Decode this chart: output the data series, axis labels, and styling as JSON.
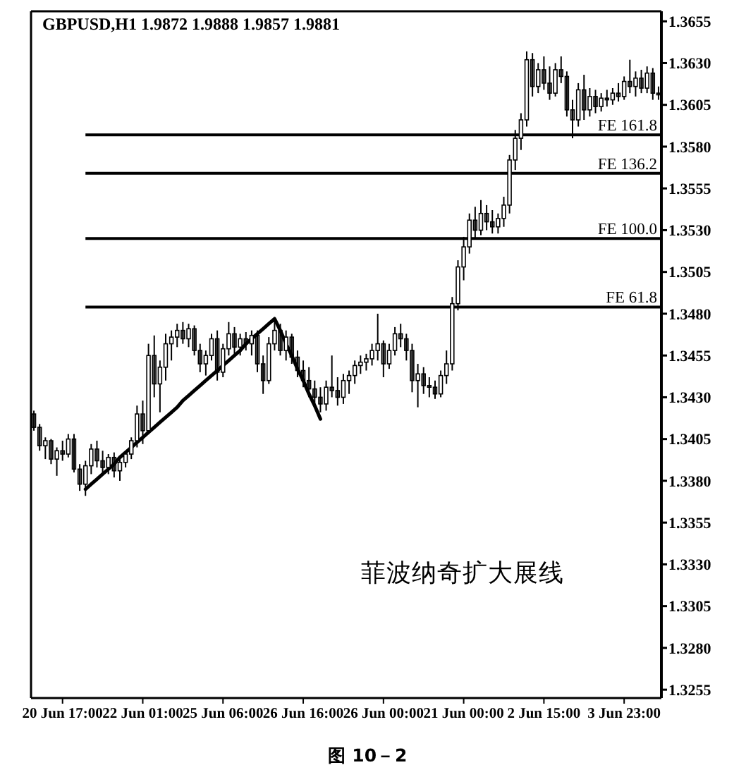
{
  "chart_data": {
    "type": "candlestick",
    "title": "GBPUSD,H1 1.9872 1.9888 1.9857 1.9881",
    "categories": [
      null,
      null,
      null,
      null,
      null,
      "20 Jun 17:00",
      null,
      null,
      null,
      null,
      null,
      null,
      null,
      null,
      null,
      null,
      null,
      null,
      null,
      "22 Jun 01:00",
      null,
      null,
      null,
      null,
      null,
      null,
      null,
      null,
      null,
      null,
      null,
      null,
      null,
      "25 Jun 06:00",
      null,
      null,
      null,
      null,
      null,
      null,
      null,
      null,
      null,
      null,
      null,
      null,
      null,
      "26 Jun 16:00",
      null,
      null,
      null,
      null,
      null,
      null,
      null,
      null,
      null,
      null,
      null,
      null,
      null,
      "26 Jun 00:00",
      null,
      null,
      null,
      null,
      null,
      null,
      null,
      null,
      null,
      null,
      null,
      null,
      null,
      "21 Jun 00:00",
      null,
      null,
      null,
      null,
      null,
      null,
      null,
      null,
      null,
      null,
      null,
      null,
      null,
      "2 Jun 15:00",
      null,
      null,
      null,
      null,
      null,
      null,
      null,
      null,
      null,
      null,
      null,
      null,
      null,
      "3 Jun 23:00",
      null,
      null,
      null,
      null,
      null,
      null
    ],
    "color": "#000000",
    "ohlc": [
      [
        1.342,
        1.3422,
        1.341,
        1.3412
      ],
      [
        1.3412,
        1.3414,
        1.3398,
        1.3401
      ],
      [
        1.3401,
        1.3406,
        1.3393,
        1.3404
      ],
      [
        1.3404,
        1.3405,
        1.339,
        1.3393
      ],
      [
        1.3393,
        1.34,
        1.3383,
        1.3398
      ],
      [
        1.3398,
        1.3404,
        1.3392,
        1.3396
      ],
      [
        1.3396,
        1.3408,
        1.3394,
        1.3405
      ],
      [
        1.3405,
        1.3408,
        1.3385,
        1.3387
      ],
      [
        1.3387,
        1.339,
        1.3374,
        1.3378
      ],
      [
        1.3378,
        1.3392,
        1.3371,
        1.3389
      ],
      [
        1.3389,
        1.3402,
        1.3384,
        1.3399
      ],
      [
        1.3399,
        1.3404,
        1.3388,
        1.3392
      ],
      [
        1.3392,
        1.3398,
        1.3385,
        1.3388
      ],
      [
        1.3388,
        1.3396,
        1.3384,
        1.3394
      ],
      [
        1.3394,
        1.3397,
        1.3382,
        1.3386
      ],
      [
        1.3386,
        1.3393,
        1.338,
        1.3391
      ],
      [
        1.3391,
        1.3398,
        1.3388,
        1.3396
      ],
      [
        1.3396,
        1.3406,
        1.3393,
        1.3404
      ],
      [
        1.3404,
        1.3425,
        1.34,
        1.342
      ],
      [
        1.342,
        1.3428,
        1.3402,
        1.341
      ],
      [
        1.341,
        1.3462,
        1.3408,
        1.3455
      ],
      [
        1.3455,
        1.3467,
        1.343,
        1.3438
      ],
      [
        1.3438,
        1.3452,
        1.3421,
        1.3448
      ],
      [
        1.3448,
        1.3468,
        1.344,
        1.3462
      ],
      [
        1.3462,
        1.347,
        1.3452,
        1.3466
      ],
      [
        1.3466,
        1.3474,
        1.346,
        1.347
      ],
      [
        1.347,
        1.3475,
        1.3462,
        1.3465
      ],
      [
        1.3465,
        1.3474,
        1.346,
        1.3471
      ],
      [
        1.3471,
        1.3473,
        1.3455,
        1.3458
      ],
      [
        1.3458,
        1.3462,
        1.3445,
        1.345
      ],
      [
        1.345,
        1.3458,
        1.3443,
        1.3455
      ],
      [
        1.3455,
        1.3468,
        1.3452,
        1.3465
      ],
      [
        1.3465,
        1.347,
        1.344,
        1.3445
      ],
      [
        1.3445,
        1.3462,
        1.3442,
        1.3459
      ],
      [
        1.3459,
        1.3475,
        1.3455,
        1.3468
      ],
      [
        1.3468,
        1.3472,
        1.3456,
        1.346
      ],
      [
        1.346,
        1.3468,
        1.3455,
        1.3465
      ],
      [
        1.3465,
        1.3469,
        1.3458,
        1.3462
      ],
      [
        1.3462,
        1.347,
        1.3455,
        1.3467
      ],
      [
        1.3467,
        1.347,
        1.3445,
        1.345
      ],
      [
        1.345,
        1.3455,
        1.3432,
        1.344
      ],
      [
        1.344,
        1.3466,
        1.3438,
        1.3462
      ],
      [
        1.3462,
        1.3478,
        1.3458,
        1.347
      ],
      [
        1.347,
        1.3474,
        1.3455,
        1.3458
      ],
      [
        1.3458,
        1.347,
        1.3452,
        1.3466
      ],
      [
        1.3466,
        1.3468,
        1.345,
        1.3454
      ],
      [
        1.3454,
        1.3458,
        1.3442,
        1.3446
      ],
      [
        1.3446,
        1.3452,
        1.3436,
        1.344
      ],
      [
        1.344,
        1.3448,
        1.343,
        1.3435
      ],
      [
        1.3435,
        1.344,
        1.3425,
        1.343
      ],
      [
        1.343,
        1.3436,
        1.3421,
        1.3426
      ],
      [
        1.3426,
        1.344,
        1.3422,
        1.3436
      ],
      [
        1.3436,
        1.3455,
        1.343,
        1.3434
      ],
      [
        1.3434,
        1.3442,
        1.3425,
        1.343
      ],
      [
        1.343,
        1.3444,
        1.3426,
        1.344
      ],
      [
        1.344,
        1.3446,
        1.3432,
        1.3443
      ],
      [
        1.3443,
        1.3452,
        1.3438,
        1.3449
      ],
      [
        1.3449,
        1.3455,
        1.3444,
        1.3451
      ],
      [
        1.3451,
        1.3456,
        1.3446,
        1.3453
      ],
      [
        1.3453,
        1.3462,
        1.3449,
        1.3458
      ],
      [
        1.3458,
        1.348,
        1.3452,
        1.3462
      ],
      [
        1.3462,
        1.3464,
        1.3442,
        1.345
      ],
      [
        1.345,
        1.3462,
        1.3447,
        1.3458
      ],
      [
        1.3458,
        1.3472,
        1.3455,
        1.3468
      ],
      [
        1.3468,
        1.3474,
        1.346,
        1.3465
      ],
      [
        1.3465,
        1.3468,
        1.3452,
        1.3458
      ],
      [
        1.3458,
        1.3462,
        1.3433,
        1.344
      ],
      [
        1.344,
        1.345,
        1.3424,
        1.3444
      ],
      [
        1.3444,
        1.3448,
        1.3432,
        1.3437
      ],
      [
        1.3437,
        1.3442,
        1.343,
        1.3436
      ],
      [
        1.3436,
        1.344,
        1.3429,
        1.3432
      ],
      [
        1.3432,
        1.3446,
        1.343,
        1.3443
      ],
      [
        1.3443,
        1.3458,
        1.3438,
        1.345
      ],
      [
        1.345,
        1.349,
        1.3446,
        1.3486
      ],
      [
        1.3486,
        1.3512,
        1.3482,
        1.3508
      ],
      [
        1.3508,
        1.3526,
        1.35,
        1.352
      ],
      [
        1.352,
        1.354,
        1.3516,
        1.3536
      ],
      [
        1.3536,
        1.3544,
        1.3525,
        1.353
      ],
      [
        1.353,
        1.3548,
        1.3527,
        1.354
      ],
      [
        1.354,
        1.3545,
        1.353,
        1.3535
      ],
      [
        1.3535,
        1.3542,
        1.3528,
        1.3532
      ],
      [
        1.3532,
        1.354,
        1.3528,
        1.3537
      ],
      [
        1.3537,
        1.355,
        1.3532,
        1.3545
      ],
      [
        1.3545,
        1.3575,
        1.354,
        1.3572
      ],
      [
        1.3572,
        1.359,
        1.3566,
        1.3585
      ],
      [
        1.3585,
        1.36,
        1.3578,
        1.3596
      ],
      [
        1.3596,
        1.3637,
        1.3592,
        1.3632
      ],
      [
        1.3632,
        1.3636,
        1.361,
        1.3616
      ],
      [
        1.3616,
        1.363,
        1.3612,
        1.3626
      ],
      [
        1.3626,
        1.3634,
        1.3614,
        1.3618
      ],
      [
        1.3618,
        1.3628,
        1.3608,
        1.3612
      ],
      [
        1.3612,
        1.363,
        1.361,
        1.3626
      ],
      [
        1.3626,
        1.3634,
        1.3618,
        1.3622
      ],
      [
        1.3622,
        1.3625,
        1.3598,
        1.3602
      ],
      [
        1.3602,
        1.3608,
        1.3585,
        1.3596
      ],
      [
        1.3596,
        1.3618,
        1.3592,
        1.3614
      ],
      [
        1.3614,
        1.3623,
        1.3596,
        1.3602
      ],
      [
        1.3602,
        1.3615,
        1.3598,
        1.361
      ],
      [
        1.361,
        1.3614,
        1.36,
        1.3604
      ],
      [
        1.3604,
        1.3612,
        1.3601,
        1.3609
      ],
      [
        1.3609,
        1.3614,
        1.3604,
        1.3608
      ],
      [
        1.3608,
        1.3615,
        1.3605,
        1.3612
      ],
      [
        1.3612,
        1.3618,
        1.3607,
        1.361
      ],
      [
        1.361,
        1.3622,
        1.3608,
        1.3619
      ],
      [
        1.3619,
        1.3632,
        1.3612,
        1.3616
      ],
      [
        1.3616,
        1.3625,
        1.361,
        1.3621
      ],
      [
        1.3621,
        1.3626,
        1.3612,
        1.3615
      ],
      [
        1.3615,
        1.3628,
        1.3612,
        1.3624
      ],
      [
        1.3624,
        1.3627,
        1.3608,
        1.3612
      ],
      [
        1.3612,
        1.3616,
        1.3608,
        1.3611
      ]
    ],
    "series": [
      {
        "type": "line",
        "color": "#000000",
        "values": [
          null,
          null,
          null,
          null,
          null,
          null,
          null,
          null,
          null,
          1.3375,
          1.3378,
          1.3381,
          1.3384,
          1.3387,
          1.339,
          1.3394,
          1.3397,
          1.34,
          1.3403,
          1.3406,
          1.3409,
          1.3412,
          1.3415,
          1.3418,
          1.3421,
          1.3424,
          1.3428,
          1.3431,
          1.3434,
          1.3437,
          1.344,
          1.3443,
          1.3446,
          1.3449,
          1.3452,
          1.3455,
          1.3458,
          1.3462,
          1.3465,
          1.3468,
          1.3471,
          1.3474,
          1.3477,
          1.347,
          1.3462,
          1.3455,
          1.3447,
          1.344,
          1.3432,
          1.3425,
          1.3417,
          null,
          null,
          null,
          null,
          null,
          null,
          null,
          null,
          null,
          null,
          null,
          null,
          null,
          null,
          null,
          null,
          null,
          null,
          null,
          null,
          null,
          null,
          null,
          null,
          null,
          null,
          null,
          null,
          null,
          null,
          null,
          null,
          null,
          null,
          null,
          null,
          null,
          null,
          null,
          null,
          null,
          null,
          null,
          null,
          null,
          null,
          null,
          null,
          null,
          null,
          null,
          null,
          null,
          null,
          null,
          null,
          null,
          null,
          null
        ]
      }
    ],
    "ylim": [
      1.325,
      1.3661
    ],
    "yticks": [
      1.3255,
      {
        "value": 1.328,
        "label": "1.3280"
      },
      1.3305,
      {
        "value": 1.333,
        "label": "1.3330"
      },
      1.3355,
      {
        "value": 1.338,
        "label": "1.3380"
      },
      1.3405,
      {
        "value": 1.343,
        "label": "1.3430"
      },
      1.3455,
      {
        "value": 1.348,
        "label": "1.3480"
      },
      1.3505,
      {
        "value": 1.353,
        "label": "1.3530"
      },
      1.3555,
      {
        "value": 1.358,
        "label": "1.3580"
      },
      1.3605,
      {
        "value": 1.363,
        "label": "1.3630"
      },
      1.3655
    ],
    "ref_lines": [
      {
        "axis": "y",
        "value": 1.3587,
        "label": "FE 161.8"
      },
      {
        "axis": "y",
        "value": 1.3564,
        "label": "FE 136.2"
      },
      {
        "axis": "y",
        "value": 1.3525,
        "label": "FE 100.0"
      },
      {
        "axis": "y",
        "value": 1.3484,
        "label": "FE 61.8"
      }
    ],
    "annotations": [
      "菲波纳奇扩大展线",
      "图 10－2"
    ]
  }
}
